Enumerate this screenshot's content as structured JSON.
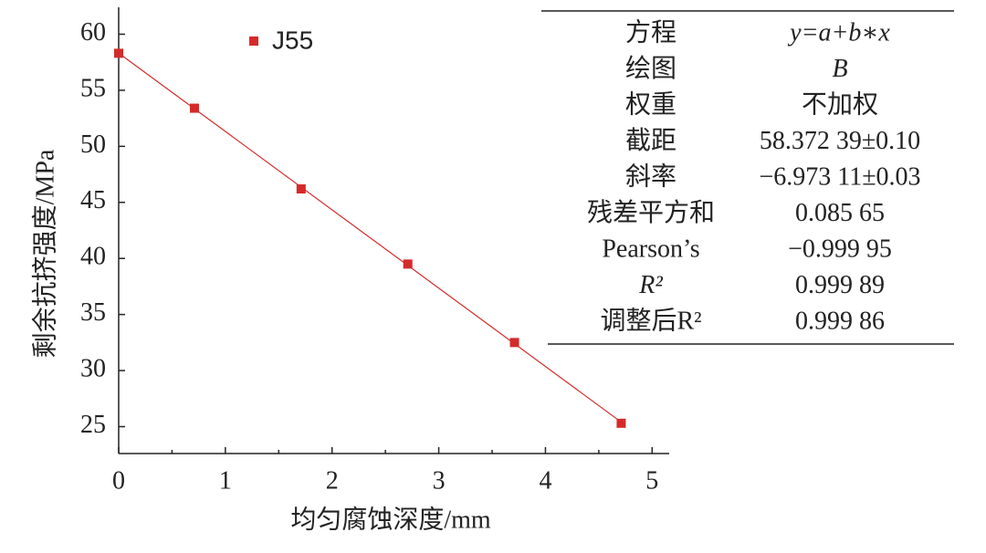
{
  "chart_data": {
    "type": "scatter",
    "x_label": "均匀腐蚀深度/mm",
    "y_label": "剩余抗挤强度/MPa",
    "series": [
      {
        "name": "J55",
        "color": "#d42a2a",
        "x": [
          0,
          0.71,
          1.71,
          2.71,
          3.71,
          4.71
        ],
        "values": [
          58.3,
          53.4,
          46.2,
          39.5,
          32.5,
          25.3
        ]
      }
    ],
    "fit_line": true,
    "xlim": [
      0,
      5.16
    ],
    "xticks": [
      0,
      1,
      2,
      3,
      4,
      5
    ],
    "xminorticks": [
      0.5,
      1.5,
      2.5,
      3.5,
      4.5
    ],
    "ylim": [
      22.6,
      62.4
    ],
    "yticks": [
      25,
      30,
      35,
      40,
      45,
      50,
      55,
      60
    ],
    "legend": "top-left"
  },
  "table": {
    "rows": [
      [
        "方程",
        "y=a+b∗x"
      ],
      [
        "绘图",
        "B"
      ],
      [
        "权重",
        "不加权"
      ],
      [
        "截距",
        "58.372 39±0.10"
      ],
      [
        "斜率",
        "−6.973 11±0.03"
      ],
      [
        "残差平方和",
        "0.085 65"
      ],
      [
        "Pearson’s",
        "−0.999 95"
      ],
      [
        "R²",
        "0.999 89"
      ],
      [
        "调整后R²",
        "0.999 86"
      ]
    ]
  }
}
